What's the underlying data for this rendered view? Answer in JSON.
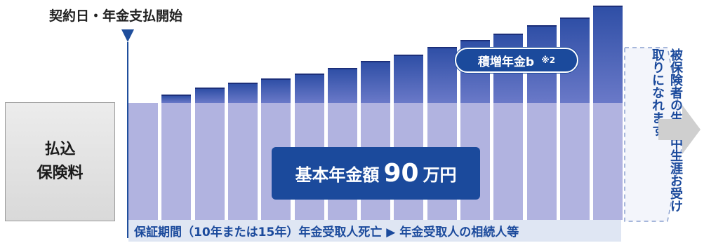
{
  "labels": {
    "start": "契約日・年金支払開始",
    "premium_line1": "払込",
    "premium_line2": "保険料",
    "accumulated": "積増年金b",
    "accumulated_note": "※2",
    "basic_label": "基本年金額",
    "basic_number": "90",
    "basic_unit": "万円",
    "lifetime": "被保険者の生存中生涯お受け取りになれます",
    "guarantee": "保証期間（10年または15年）年金受取人死亡 ▶ 年金受取人の相続人等"
  },
  "chart_data": {
    "type": "bar",
    "series": [
      {
        "name": "基本年金額",
        "values": [
          1,
          1,
          1,
          1,
          1,
          1,
          1,
          1,
          1,
          1,
          1,
          1,
          1,
          1,
          1
        ]
      },
      {
        "name": "積増年金b",
        "values": [
          0,
          0.06,
          0.12,
          0.16,
          0.2,
          0.24,
          0.29,
          0.35,
          0.4,
          0.47,
          0.53,
          0.58,
          0.65,
          0.72,
          0.82
        ]
      }
    ],
    "colors": {
      "base": "#b1b3e0",
      "accumulated": "#2f4fa6",
      "accent": "#1b4a9c"
    }
  }
}
